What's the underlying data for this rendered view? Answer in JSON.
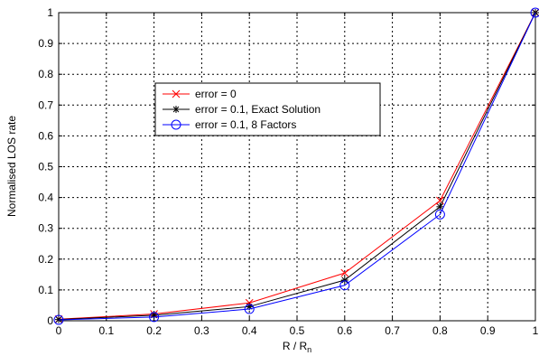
{
  "chart_data": {
    "type": "line",
    "title": "",
    "xlabel": "R / R",
    "xlabel_subscript": "n",
    "ylabel": "Normalised LOS rate",
    "xlim": [
      0,
      1
    ],
    "ylim": [
      0,
      1
    ],
    "xticks": [
      "0",
      "0.1",
      "0.2",
      "0.3",
      "0.4",
      "0.5",
      "0.6",
      "0.7",
      "0.8",
      "0.9",
      "1"
    ],
    "yticks": [
      "0",
      "0.1",
      "0.2",
      "0.3",
      "0.4",
      "0.5",
      "0.6",
      "0.7",
      "0.8",
      "0.9",
      "1"
    ],
    "grid": true,
    "legend_placement": "center-left",
    "x": [
      0,
      0.2,
      0.4,
      0.6,
      0.8,
      1.0
    ],
    "series": [
      {
        "name": "error = 0",
        "values": [
          0.005,
          0.022,
          0.058,
          0.155,
          0.39,
          1.0
        ],
        "color": "#ff0000",
        "marker": "x"
      },
      {
        "name": "error = 0.1, Exact Solution",
        "values": [
          0.004,
          0.018,
          0.046,
          0.132,
          0.37,
          1.0
        ],
        "color": "#000000",
        "marker": "star"
      },
      {
        "name": "error = 0.1, 8 Factors",
        "values": [
          0.003,
          0.012,
          0.038,
          0.115,
          0.345,
          1.0
        ],
        "color": "#0000ff",
        "marker": "circle"
      }
    ]
  }
}
